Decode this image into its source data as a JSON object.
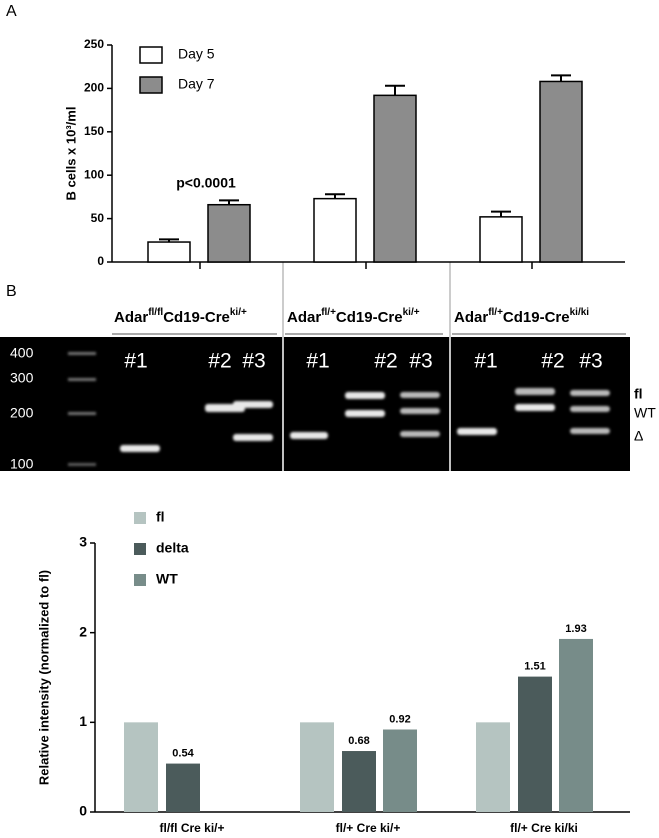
{
  "panel_labels": [
    "A",
    "B"
  ],
  "chart_data": [
    {
      "type": "bar",
      "ylabel": "B cells x 10³/ml",
      "categories": [
        null,
        null,
        null
      ],
      "series": [
        {
          "name": "Day 5",
          "color": "#ffffff",
          "values": [
            23,
            73,
            52
          ],
          "errors": [
            3,
            5,
            6
          ]
        },
        {
          "name": "Day 7",
          "color": "#8c8c8c",
          "values": [
            66,
            192,
            208
          ],
          "errors": [
            5,
            11,
            7
          ]
        }
      ],
      "ylim": [
        0,
        250
      ],
      "yticks": [
        0,
        50,
        100,
        150,
        200,
        250
      ],
      "annotations": [
        "p<0.0001"
      ],
      "legend": "upper left"
    },
    {
      "type": "bar",
      "ylabel": "Relative intensity (normalized to fl)",
      "categories": [
        "fl/fl Cre ki/+",
        "fl/+ Cre ki/+",
        "fl/+ Cre ki/ki"
      ],
      "series": [
        {
          "name": "fl",
          "color": "#b5c4c1",
          "values": [
            1,
            1,
            1
          ]
        },
        {
          "name": "delta",
          "color": "#4b5b5b",
          "values": [
            0.54,
            0.68,
            1.51
          ],
          "show_labels": true
        },
        {
          "name": "WT",
          "color": "#778c89",
          "values": [
            null,
            0.92,
            1.93
          ],
          "show_labels": true
        }
      ],
      "ylim": [
        0,
        3
      ],
      "yticks": [
        0,
        1,
        2,
        3
      ],
      "legend": "upper left"
    }
  ],
  "gel": {
    "groups": [
      {
        "gene": "Adar",
        "genotype": "fl/fl",
        "driver": "Cd19-Cre",
        "allele": "ki/+",
        "lanes": [
          "#1",
          "#2",
          "#3"
        ]
      },
      {
        "gene": "Adar",
        "genotype": "fl/+",
        "driver": "Cd19-Cre",
        "allele": "ki/+",
        "lanes": [
          "#1",
          "#2",
          "#3"
        ]
      },
      {
        "gene": "Adar",
        "genotype": "fl/+",
        "driver": "Cd19-Cre",
        "allele": "ki/ki",
        "lanes": [
          "#1",
          "#2",
          "#3"
        ]
      }
    ],
    "ladder": [
      "400",
      "300",
      "200",
      "100"
    ],
    "bands": [
      "fl",
      "WT",
      "Δ"
    ]
  }
}
